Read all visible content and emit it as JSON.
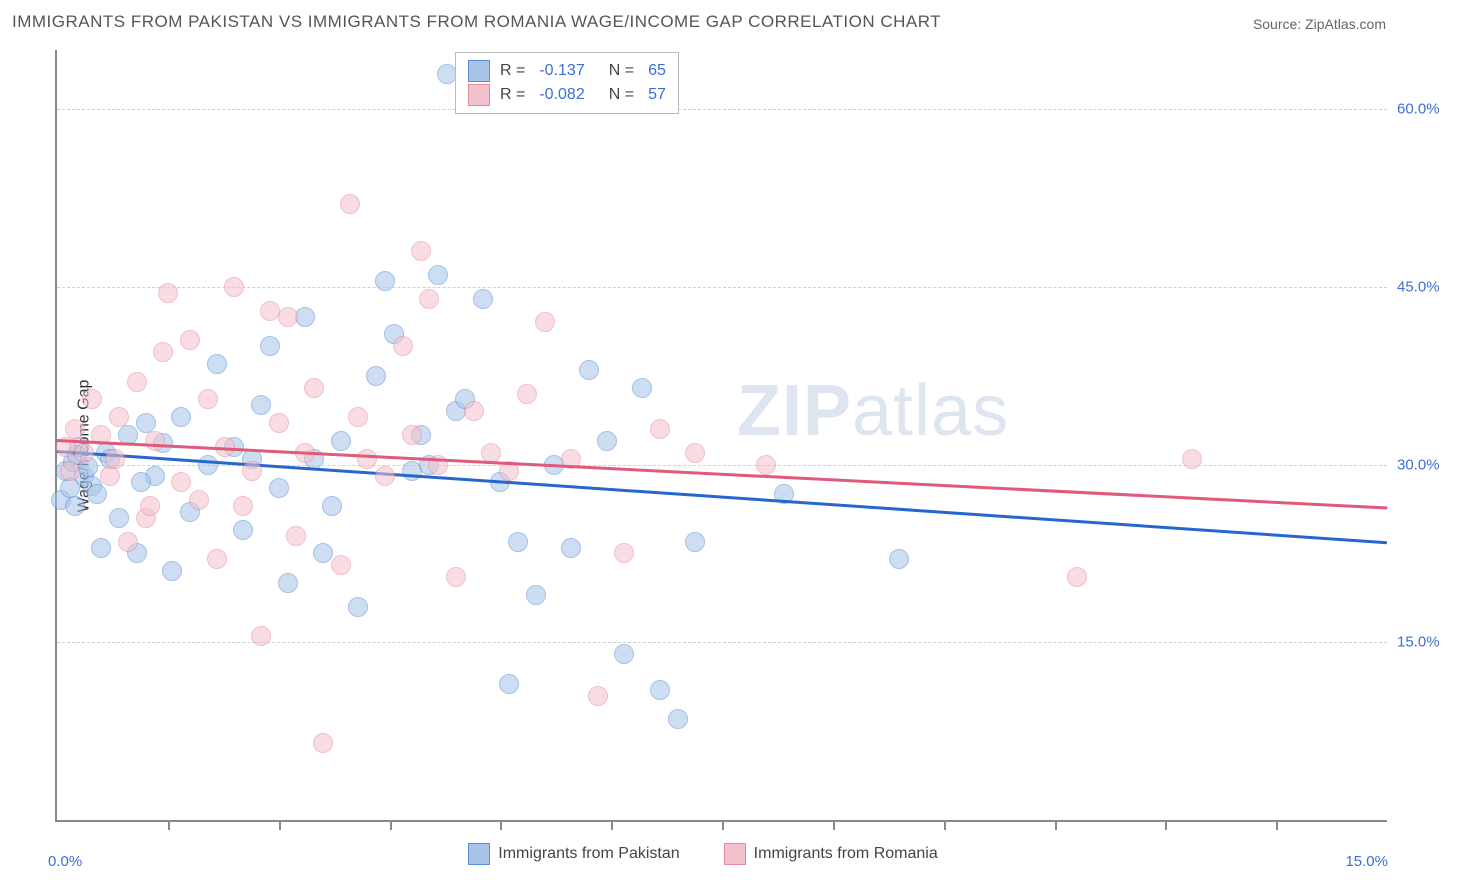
{
  "title": "IMMIGRANTS FROM PAKISTAN VS IMMIGRANTS FROM ROMANIA WAGE/INCOME GAP CORRELATION CHART",
  "source": "Source: ZipAtlas.com",
  "ylabel": "Wage/Income Gap",
  "watermark_bold": "ZIP",
  "watermark_rest": "atlas",
  "chart": {
    "type": "scatter",
    "background_color": "#ffffff",
    "grid_color": "#d0d0d0",
    "axis_color": "#888888",
    "tick_label_color": "#3b6fd6",
    "title_fontsize": 17,
    "label_fontsize": 16,
    "tick_fontsize": 15,
    "xlim": [
      0,
      15
    ],
    "ylim": [
      0,
      65
    ],
    "ygrid": [
      15,
      30,
      45,
      60
    ],
    "ytick_labels": [
      "15.0%",
      "30.0%",
      "45.0%",
      "60.0%"
    ],
    "xticks_minor": [
      1.25,
      2.5,
      3.75,
      5.0,
      6.25,
      7.5,
      8.75,
      10.0,
      11.25,
      12.5,
      13.75
    ],
    "xtick_left": {
      "pos": 0,
      "label": "0.0%"
    },
    "xtick_right": {
      "pos": 15,
      "label": "15.0%"
    },
    "marker_radius": 10,
    "marker_opacity": 0.55,
    "line_width": 2.5,
    "series": [
      {
        "name": "Immigrants from Pakistan",
        "fill": "#a7c4e8",
        "stroke": "#5a8fd6",
        "line_color": "#2766cc",
        "R": "-0.137",
        "N": "65",
        "trend": {
          "x1": 0,
          "y1": 31.2,
          "x2": 15,
          "y2": 23.5
        },
        "points": [
          [
            0.05,
            27.0
          ],
          [
            0.1,
            29.5
          ],
          [
            0.15,
            28.0
          ],
          [
            0.18,
            30.2
          ],
          [
            0.2,
            26.5
          ],
          [
            0.22,
            30.8
          ],
          [
            0.25,
            31.5
          ],
          [
            0.3,
            29.0
          ],
          [
            0.35,
            29.8
          ],
          [
            0.4,
            28.2
          ],
          [
            0.5,
            23.0
          ],
          [
            0.55,
            31.0
          ],
          [
            0.6,
            30.5
          ],
          [
            0.7,
            25.5
          ],
          [
            0.8,
            32.5
          ],
          [
            0.9,
            22.5
          ],
          [
            1.0,
            33.5
          ],
          [
            1.1,
            29.0
          ],
          [
            1.2,
            31.8
          ],
          [
            1.3,
            21.0
          ],
          [
            1.5,
            26.0
          ],
          [
            1.7,
            30.0
          ],
          [
            1.8,
            38.5
          ],
          [
            2.0,
            31.5
          ],
          [
            2.1,
            24.5
          ],
          [
            2.3,
            35.0
          ],
          [
            2.5,
            28.0
          ],
          [
            2.6,
            20.0
          ],
          [
            2.8,
            42.5
          ],
          [
            2.9,
            30.5
          ],
          [
            3.0,
            22.5
          ],
          [
            3.2,
            32.0
          ],
          [
            3.4,
            18.0
          ],
          [
            3.6,
            37.5
          ],
          [
            3.8,
            41.0
          ],
          [
            4.0,
            29.5
          ],
          [
            4.1,
            32.5
          ],
          [
            4.3,
            46.0
          ],
          [
            4.5,
            34.5
          ],
          [
            4.6,
            35.5
          ],
          [
            4.8,
            44.0
          ],
          [
            5.0,
            28.5
          ],
          [
            5.2,
            23.5
          ],
          [
            5.4,
            19.0
          ],
          [
            5.6,
            30.0
          ],
          [
            5.8,
            23.0
          ],
          [
            6.0,
            38.0
          ],
          [
            6.2,
            32.0
          ],
          [
            6.4,
            14.0
          ],
          [
            6.6,
            36.5
          ],
          [
            6.8,
            11.0
          ],
          [
            7.0,
            8.5
          ],
          [
            7.2,
            23.5
          ],
          [
            8.2,
            27.5
          ],
          [
            9.5,
            22.0
          ],
          [
            4.4,
            63.0
          ],
          [
            3.7,
            45.5
          ],
          [
            2.4,
            40.0
          ],
          [
            5.1,
            11.5
          ],
          [
            1.4,
            34.0
          ],
          [
            0.45,
            27.5
          ],
          [
            0.95,
            28.5
          ],
          [
            2.2,
            30.5
          ],
          [
            3.1,
            26.5
          ],
          [
            4.2,
            30.0
          ]
        ]
      },
      {
        "name": "Immigrants from Romania",
        "fill": "#f3c1cb",
        "stroke": "#e68aa0",
        "line_color": "#e05a7a",
        "R": "-0.082",
        "N": "57",
        "trend": {
          "x1": 0,
          "y1": 32.2,
          "x2": 15,
          "y2": 26.5
        },
        "points": [
          [
            0.1,
            31.5
          ],
          [
            0.2,
            33.0
          ],
          [
            0.3,
            31.0
          ],
          [
            0.4,
            35.5
          ],
          [
            0.5,
            32.5
          ],
          [
            0.6,
            29.0
          ],
          [
            0.7,
            34.0
          ],
          [
            0.8,
            23.5
          ],
          [
            0.9,
            37.0
          ],
          [
            1.0,
            25.5
          ],
          [
            1.1,
            32.0
          ],
          [
            1.2,
            39.5
          ],
          [
            1.25,
            44.5
          ],
          [
            1.4,
            28.5
          ],
          [
            1.5,
            40.5
          ],
          [
            1.6,
            27.0
          ],
          [
            1.7,
            35.5
          ],
          [
            1.8,
            22.0
          ],
          [
            1.9,
            31.5
          ],
          [
            2.0,
            45.0
          ],
          [
            2.1,
            26.5
          ],
          [
            2.2,
            29.5
          ],
          [
            2.3,
            15.5
          ],
          [
            2.4,
            43.0
          ],
          [
            2.5,
            33.5
          ],
          [
            2.6,
            42.5
          ],
          [
            2.7,
            24.0
          ],
          [
            2.8,
            31.0
          ],
          [
            2.9,
            36.5
          ],
          [
            3.0,
            6.5
          ],
          [
            3.2,
            21.5
          ],
          [
            3.3,
            52.0
          ],
          [
            3.4,
            34.0
          ],
          [
            3.5,
            30.5
          ],
          [
            3.7,
            29.0
          ],
          [
            3.9,
            40.0
          ],
          [
            4.0,
            32.5
          ],
          [
            4.1,
            48.0
          ],
          [
            4.2,
            44.0
          ],
          [
            4.3,
            30.0
          ],
          [
            4.5,
            20.5
          ],
          [
            4.7,
            34.5
          ],
          [
            4.9,
            31.0
          ],
          [
            5.1,
            29.5
          ],
          [
            5.3,
            36.0
          ],
          [
            5.5,
            42.0
          ],
          [
            5.8,
            30.5
          ],
          [
            6.1,
            10.5
          ],
          [
            6.4,
            22.5
          ],
          [
            6.8,
            33.0
          ],
          [
            7.2,
            31.0
          ],
          [
            8.0,
            30.0
          ],
          [
            11.5,
            20.5
          ],
          [
            12.8,
            30.5
          ],
          [
            0.65,
            30.5
          ],
          [
            1.05,
            26.5
          ],
          [
            0.15,
            29.5
          ]
        ]
      }
    ]
  },
  "legend_bottom": [
    {
      "label": "Immigrants from Pakistan",
      "fill": "#a7c4e8",
      "stroke": "#5a8fd6"
    },
    {
      "label": "Immigrants from Romania",
      "fill": "#f3c1cb",
      "stroke": "#e68aa0"
    }
  ]
}
